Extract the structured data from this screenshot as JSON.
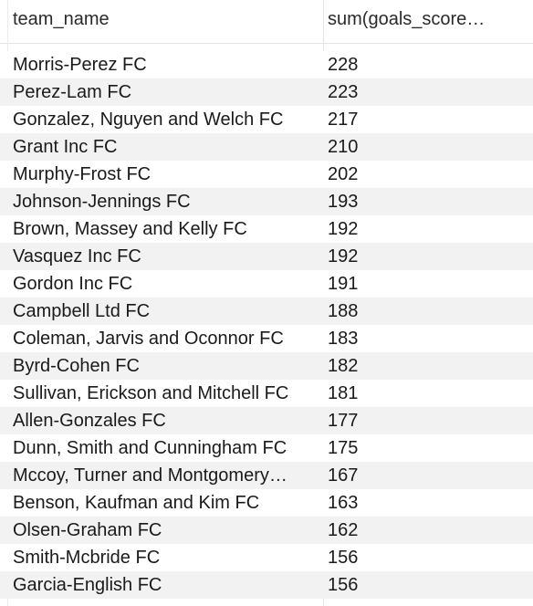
{
  "columns": [
    {
      "label": "team_name"
    },
    {
      "label": "sum(goals_score…"
    }
  ],
  "rows": [
    {
      "team_name": "Morris-Perez FC",
      "sum": "228"
    },
    {
      "team_name": "Perez-Lam FC",
      "sum": "223"
    },
    {
      "team_name": "Gonzalez, Nguyen and Welch FC",
      "sum": "217"
    },
    {
      "team_name": "Grant Inc FC",
      "sum": "210"
    },
    {
      "team_name": "Murphy-Frost FC",
      "sum": "202"
    },
    {
      "team_name": "Johnson-Jennings FC",
      "sum": "193"
    },
    {
      "team_name": "Brown, Massey and Kelly FC",
      "sum": "192"
    },
    {
      "team_name": "Vasquez Inc FC",
      "sum": "192"
    },
    {
      "team_name": "Gordon Inc FC",
      "sum": "191"
    },
    {
      "team_name": "Campbell Ltd FC",
      "sum": "188"
    },
    {
      "team_name": "Coleman, Jarvis and Oconnor FC",
      "sum": "183"
    },
    {
      "team_name": "Byrd-Cohen FC",
      "sum": "182"
    },
    {
      "team_name": "Sullivan, Erickson and Mitchell FC",
      "sum": "181"
    },
    {
      "team_name": "Allen-Gonzales FC",
      "sum": "177"
    },
    {
      "team_name": "Dunn, Smith and Cunningham FC",
      "sum": "175"
    },
    {
      "team_name": "Mccoy, Turner and Montgomery…",
      "sum": "167"
    },
    {
      "team_name": "Benson, Kaufman and Kim FC",
      "sum": "163"
    },
    {
      "team_name": "Olsen-Graham FC",
      "sum": "162"
    },
    {
      "team_name": "Smith-Mcbride FC",
      "sum": "156"
    },
    {
      "team_name": "Garcia-English FC",
      "sum": "156"
    }
  ]
}
